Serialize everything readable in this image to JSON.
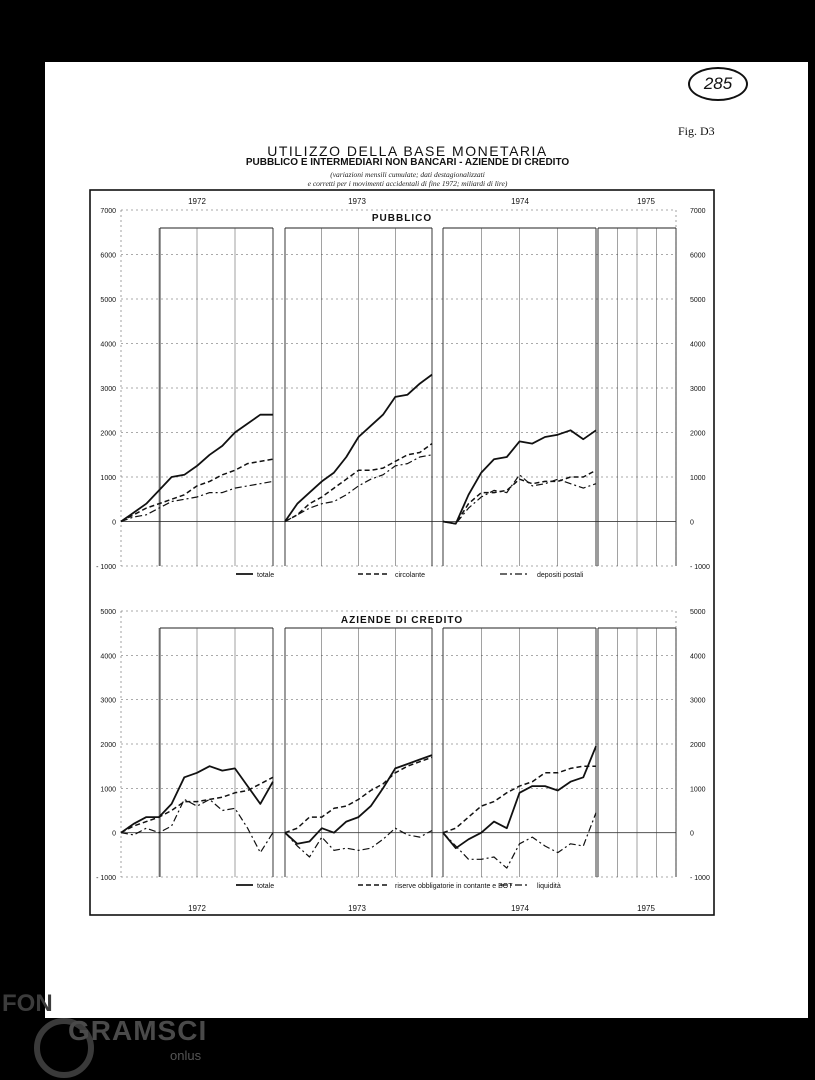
{
  "page": {
    "stamp": "285",
    "fig_label": "Fig. D3",
    "title": "UTILIZZO DELLA BASE MONETARIA",
    "subtitle": "PUBBLICO E INTERMEDIARI NON BANCARI - AZIENDE DI CREDITO",
    "note_line1": "(variazioni mensili cumulate; dati destagionalizzati",
    "note_line2": "e corretti per i movimenti accidentali di fine 1972; miliardi di lire)",
    "watermark": {
      "fond": "FON",
      "gramsci": "GRAMSCI",
      "onlus": "onlus"
    }
  },
  "style": {
    "line_color": "#111111",
    "grid_color": "#444444",
    "paper": "#ffffff",
    "background": "#000000"
  },
  "chart_data": [
    {
      "type": "line",
      "title": "PUBBLICO",
      "ylim": [
        -1000,
        7000
      ],
      "yticks": [
        "7000",
        "6000",
        "5000",
        "4000",
        "3000",
        "2000",
        "1000",
        "0",
        "- 1000"
      ],
      "periods": [
        "1972",
        "1973",
        "1974",
        "1975"
      ],
      "x_unit": "month index within each year (1-12)",
      "grid": true,
      "legend_position": "bottom",
      "series": [
        {
          "name": "totale",
          "style": "solid",
          "segments": [
            {
              "period": "1972",
              "values": [
                0,
                200,
                400,
                700,
                1000,
                1050,
                1250,
                1500,
                1700,
                2000,
                2200,
                2400,
                2400
              ]
            },
            {
              "period": "1973",
              "values": [
                0,
                400,
                650,
                900,
                1100,
                1450,
                1900,
                2150,
                2400,
                2800,
                2850,
                3100,
                3300
              ]
            },
            {
              "period": "1974",
              "values": [
                0,
                -50,
                600,
                1100,
                1400,
                1450,
                1800,
                1750,
                1900,
                1950,
                2050,
                1850,
                2050
              ]
            }
          ]
        },
        {
          "name": "circolante",
          "style": "dashed",
          "segments": [
            {
              "period": "1972",
              "values": [
                0,
                150,
                300,
                400,
                500,
                600,
                800,
                900,
                1050,
                1150,
                1300,
                1350,
                1400
              ]
            },
            {
              "period": "1973",
              "values": [
                0,
                150,
                400,
                550,
                750,
                950,
                1150,
                1150,
                1200,
                1350,
                1500,
                1550,
                1750
              ]
            },
            {
              "period": "1974",
              "values": [
                0,
                -50,
                400,
                650,
                650,
                700,
                950,
                850,
                900,
                900,
                1000,
                1000,
                1150
              ]
            }
          ]
        },
        {
          "name": "depositi postali",
          "style": "dashdot",
          "segments": [
            {
              "period": "1972",
              "values": [
                0,
                100,
                150,
                300,
                450,
                500,
                550,
                650,
                650,
                750,
                800,
                850,
                900
              ]
            },
            {
              "period": "1973",
              "values": [
                0,
                150,
                300,
                400,
                450,
                600,
                800,
                950,
                1050,
                1250,
                1300,
                1450,
                1500
              ]
            },
            {
              "period": "1974",
              "values": [
                0,
                -50,
                300,
                550,
                700,
                650,
                1050,
                800,
                850,
                950,
                850,
                750,
                850
              ]
            }
          ]
        }
      ]
    },
    {
      "type": "line",
      "title": "AZIENDE DI CREDITO",
      "ylim": [
        -1000,
        5000
      ],
      "yticks": [
        "5000",
        "4000",
        "3000",
        "2000",
        "1000",
        "0",
        "- 1000"
      ],
      "periods": [
        "1972",
        "1973",
        "1974",
        "1975"
      ],
      "x_unit": "month index within each year (1-12)",
      "grid": true,
      "legend_position": "bottom",
      "series": [
        {
          "name": "totale",
          "style": "solid",
          "segments": [
            {
              "period": "1972",
              "values": [
                0,
                200,
                350,
                350,
                650,
                1250,
                1350,
                1500,
                1400,
                1450,
                1050,
                650,
                1150
              ]
            },
            {
              "period": "1973",
              "values": [
                0,
                -250,
                -200,
                100,
                0,
                250,
                350,
                600,
                1000,
                1450,
                1550,
                1650,
                1750
              ]
            },
            {
              "period": "1974",
              "values": [
                0,
                -350,
                -150,
                0,
                250,
                100,
                900,
                1050,
                1050,
                950,
                1150,
                1250,
                1950
              ]
            }
          ]
        },
        {
          "name": "riserve obbligatorie in contante e BOT",
          "style": "dashed",
          "segments": [
            {
              "period": "1972",
              "values": [
                0,
                150,
                250,
                350,
                500,
                700,
                700,
                750,
                800,
                900,
                950,
                1100,
                1250
              ]
            },
            {
              "period": "1973",
              "values": [
                0,
                100,
                350,
                350,
                550,
                600,
                750,
                950,
                1100,
                1350,
                1500,
                1600,
                1700
              ]
            },
            {
              "period": "1974",
              "values": [
                0,
                100,
                350,
                600,
                700,
                900,
                1050,
                1150,
                1350,
                1350,
                1450,
                1500,
                1500
              ]
            }
          ]
        },
        {
          "name": "liquidità",
          "style": "dashdot",
          "segments": [
            {
              "period": "1972",
              "values": [
                0,
                -50,
                100,
                0,
                150,
                750,
                600,
                750,
                500,
                550,
                100,
                -450,
                0
              ]
            },
            {
              "period": "1973",
              "values": [
                0,
                -300,
                -550,
                -100,
                -400,
                -350,
                -400,
                -350,
                -150,
                100,
                -50,
                -100,
                50
              ]
            },
            {
              "period": "1974",
              "values": [
                0,
                -300,
                -600,
                -600,
                -550,
                -800,
                -250,
                -100,
                -300,
                -450,
                -250,
                -300,
                450
              ]
            }
          ]
        }
      ]
    }
  ]
}
